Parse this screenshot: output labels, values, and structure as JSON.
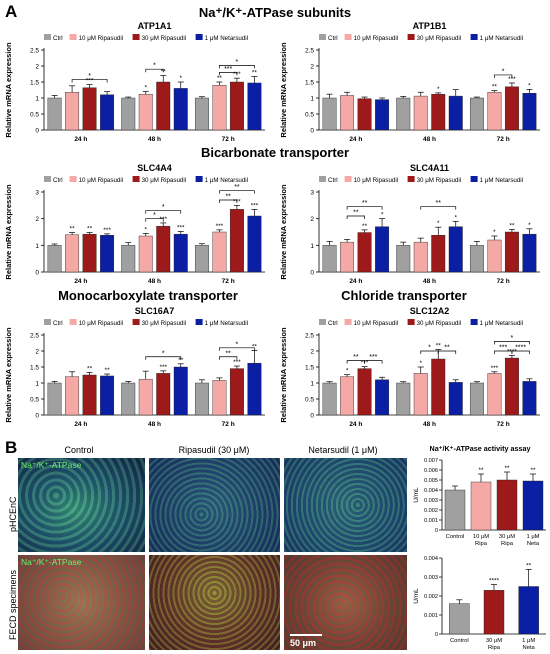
{
  "panel_a_letter": "A",
  "panel_b_letter": "B",
  "headers": {
    "na_k": "Na⁺/K⁺-ATPase subunits",
    "bicarbonate": "Bicarbonate transporter",
    "monocarboxylate": "Monocarboxylate transporter",
    "chloride": "Chloride transporter"
  },
  "colors": {
    "ctrl": "#a0a0a0",
    "ripa10": "#f4a9a6",
    "ripa30": "#9e1a1a",
    "neta": "#0b1fa5"
  },
  "micro": {
    "cols": [
      "Control",
      "Ripasudil (30 μM)",
      "Netarsudil (1 μM)"
    ],
    "rows": [
      "pHCEnC",
      "FECD specimens"
    ],
    "stain": "Na⁺/K⁺-ATPase",
    "scale": "50 μm"
  },
  "chart_data": [
    {
      "type": "bar",
      "title": "ATP1A1",
      "ylabel": "Relative mRNA expression",
      "ylim": [
        0,
        2.5
      ],
      "yticks": [
        0,
        0.5,
        1.0,
        1.5,
        2.0,
        2.5
      ],
      "categories": [
        "24 h",
        "48 h",
        "72 h"
      ],
      "legend": [
        "Ctrl",
        "10 μM Ripasudil",
        "30 μM Ripasudil",
        "1 μM Netarsudil"
      ],
      "series": [
        {
          "name": "Ctrl",
          "values": [
            1.0,
            1.0,
            1.0
          ],
          "errors": [
            0.08,
            0.03,
            0.04
          ]
        },
        {
          "name": "10 μM Ripasudil",
          "values": [
            1.18,
            1.12,
            1.4
          ],
          "errors": [
            0.2,
            0.08,
            0.1
          ]
        },
        {
          "name": "30 μM Ripasudil",
          "values": [
            1.32,
            1.5,
            1.5
          ],
          "errors": [
            0.1,
            0.2,
            0.12
          ]
        },
        {
          "name": "1 μM Netarsudil",
          "values": [
            1.1,
            1.3,
            1.47
          ],
          "errors": [
            0.1,
            0.2,
            0.2
          ]
        }
      ],
      "bar_marks": [
        [
          "",
          "",
          "***",
          ""
        ],
        [
          "",
          "*",
          "**",
          "*"
        ],
        [
          "",
          "**",
          "***",
          "**"
        ]
      ],
      "brackets": [
        {
          "g": 0,
          "a": 1,
          "b": 3,
          "y": 1.58,
          "text": "*"
        },
        {
          "g": 1,
          "a": 1,
          "b": 2,
          "y": 1.9,
          "text": "*"
        },
        {
          "g": 2,
          "a": 1,
          "b": 2,
          "y": 1.8,
          "text": "***"
        },
        {
          "g": 2,
          "a": 1,
          "b": 3,
          "y": 2.02,
          "text": "*"
        }
      ]
    },
    {
      "type": "bar",
      "title": "ATP1B1",
      "ylabel": "Relative mRNA expression",
      "ylim": [
        0,
        2.5
      ],
      "yticks": [
        0,
        0.5,
        1.0,
        1.5,
        2.0,
        2.5
      ],
      "categories": [
        "24 h",
        "48 h",
        "72 h"
      ],
      "legend": [
        "Ctrl",
        "10 μM Ripasudil",
        "30 μM Ripasudil",
        "1 μM Netarsudil"
      ],
      "series": [
        {
          "name": "Ctrl",
          "values": [
            1.0,
            1.0,
            1.0
          ],
          "errors": [
            0.12,
            0.05,
            0.03
          ]
        },
        {
          "name": "10 μM Ripasudil",
          "values": [
            1.08,
            1.06,
            1.18
          ],
          "errors": [
            0.1,
            0.12,
            0.05
          ]
        },
        {
          "name": "30 μM Ripasudil",
          "values": [
            0.98,
            1.12,
            1.35
          ],
          "errors": [
            0.05,
            0.04,
            0.12
          ]
        },
        {
          "name": "1 μM Netarsudil",
          "values": [
            0.95,
            1.06,
            1.15
          ],
          "errors": [
            0.05,
            0.2,
            0.12
          ]
        }
      ],
      "bar_marks": [
        [
          "",
          "",
          "",
          ""
        ],
        [
          "",
          "",
          "*",
          ""
        ],
        [
          "",
          "**",
          "***",
          "*"
        ]
      ],
      "brackets": [
        {
          "g": 2,
          "a": 1,
          "b": 2,
          "y": 1.72,
          "text": "*"
        }
      ]
    },
    {
      "type": "bar",
      "title": "SLC4A4",
      "ylabel": "Relative mRNA expression",
      "ylim": [
        0,
        3
      ],
      "yticks": [
        0,
        1,
        2,
        3
      ],
      "categories": [
        "24 h",
        "48 h",
        "72 h"
      ],
      "legend": [
        "Ctrl",
        "10 μM Ripasudil",
        "30 μM Ripasudil",
        "1 μM Netarsudil"
      ],
      "series": [
        {
          "name": "Ctrl",
          "values": [
            1.0,
            1.0,
            1.0
          ],
          "errors": [
            0.05,
            0.1,
            0.06
          ]
        },
        {
          "name": "10 μM Ripasudil",
          "values": [
            1.4,
            1.35,
            1.5
          ],
          "errors": [
            0.08,
            0.1,
            0.08
          ]
        },
        {
          "name": "30 μM Ripasudil",
          "values": [
            1.42,
            1.72,
            2.35
          ],
          "errors": [
            0.06,
            0.12,
            0.15
          ]
        },
        {
          "name": "1 μM Netarsudil",
          "values": [
            1.38,
            1.42,
            2.1
          ],
          "errors": [
            0.05,
            0.1,
            0.25
          ]
        }
      ],
      "bar_marks": [
        [
          "",
          "**",
          "**",
          "***"
        ],
        [
          "",
          "*",
          "***",
          "***"
        ],
        [
          "",
          "***",
          "***",
          "***"
        ]
      ],
      "brackets": [
        {
          "g": 1,
          "a": 1,
          "b": 2,
          "y": 2.0,
          "text": "*"
        },
        {
          "g": 1,
          "a": 1,
          "b": 3,
          "y": 2.3,
          "text": "*"
        },
        {
          "g": 2,
          "a": 1,
          "b": 2,
          "y": 2.7,
          "text": "**"
        },
        {
          "g": 2,
          "a": 1,
          "b": 3,
          "y": 3.05,
          "text": "**"
        }
      ]
    },
    {
      "type": "bar",
      "title": "SLC4A11",
      "ylabel": "Relative mRNA expression",
      "ylim": [
        0,
        3
      ],
      "yticks": [
        0,
        1,
        2,
        3
      ],
      "categories": [
        "24 h",
        "48 h",
        "72 h"
      ],
      "legend": [
        "Ctrl",
        "10 μM Ripasudil",
        "30 μM Ripasudil",
        "1 μM Netarsudil"
      ],
      "series": [
        {
          "name": "Ctrl",
          "values": [
            1.0,
            1.0,
            1.0
          ],
          "errors": [
            0.15,
            0.12,
            0.15
          ]
        },
        {
          "name": "10 μM Ripasudil",
          "values": [
            1.12,
            1.12,
            1.2
          ],
          "errors": [
            0.1,
            0.15,
            0.15
          ]
        },
        {
          "name": "30 μM Ripasudil",
          "values": [
            1.48,
            1.38,
            1.5
          ],
          "errors": [
            0.1,
            0.3,
            0.1
          ]
        },
        {
          "name": "1 μM Netarsudil",
          "values": [
            1.7,
            1.7,
            1.42
          ],
          "errors": [
            0.3,
            0.2,
            0.2
          ]
        }
      ],
      "bar_marks": [
        [
          "",
          "",
          "**",
          "*"
        ],
        [
          "",
          "",
          "*",
          "*"
        ],
        [
          "",
          "*",
          "**",
          "*"
        ]
      ],
      "brackets": [
        {
          "g": 0,
          "a": 1,
          "b": 2,
          "y": 2.1,
          "text": "**"
        },
        {
          "g": 0,
          "a": 1,
          "b": 3,
          "y": 2.45,
          "text": "**"
        },
        {
          "g": 1,
          "a": 1,
          "b": 3,
          "y": 2.45,
          "text": "**"
        }
      ]
    },
    {
      "type": "bar",
      "title": "SLC16A7",
      "ylabel": "Relative mRNA expression",
      "ylim": [
        0,
        2.5
      ],
      "yticks": [
        0,
        0.5,
        1.0,
        1.5,
        2.0,
        2.5
      ],
      "categories": [
        "24 h",
        "48 h",
        "72 h"
      ],
      "legend": [
        "Ctrl",
        "10 μM Ripasudil",
        "30 μM Ripasudil",
        "1 μM Netarsudil"
      ],
      "series": [
        {
          "name": "Ctrl",
          "values": [
            1.0,
            1.0,
            1.0
          ],
          "errors": [
            0.05,
            0.05,
            0.1
          ]
        },
        {
          "name": "10 μM Ripasudil",
          "values": [
            1.2,
            1.12,
            1.08
          ],
          "errors": [
            0.15,
            0.25,
            0.08
          ]
        },
        {
          "name": "30 μM Ripasudil",
          "values": [
            1.25,
            1.3,
            1.45
          ],
          "errors": [
            0.08,
            0.08,
            0.08
          ]
        },
        {
          "name": "1 μM Netarsudil",
          "values": [
            1.22,
            1.5,
            1.62
          ],
          "errors": [
            0.06,
            0.1,
            0.4
          ]
        }
      ],
      "bar_marks": [
        [
          "",
          "",
          "**",
          "**"
        ],
        [
          "",
          "",
          "***",
          "**"
        ],
        [
          "",
          "",
          "***",
          "**"
        ]
      ],
      "brackets": [
        {
          "g": 1,
          "a": 1,
          "b": 3,
          "y": 1.82,
          "text": "*"
        },
        {
          "g": 2,
          "a": 1,
          "b": 2,
          "y": 1.82,
          "text": "**"
        },
        {
          "g": 2,
          "a": 1,
          "b": 3,
          "y": 2.1,
          "text": "*"
        }
      ]
    },
    {
      "type": "bar",
      "title": "SLC12A2",
      "ylabel": "Relative mRNA expression",
      "ylim": [
        0,
        2.5
      ],
      "yticks": [
        0,
        0.5,
        1.0,
        1.5,
        2.0,
        2.5
      ],
      "categories": [
        "24 h",
        "48 h",
        "72 h"
      ],
      "legend": [
        "Ctrl",
        "10 μM Ripasudil",
        "30 μM Ripasudil",
        "1 μM Netarsudil"
      ],
      "series": [
        {
          "name": "Ctrl",
          "values": [
            1.0,
            1.0,
            1.0
          ],
          "errors": [
            0.04,
            0.04,
            0.04
          ]
        },
        {
          "name": "10 μM Ripasudil",
          "values": [
            1.2,
            1.3,
            1.3
          ],
          "errors": [
            0.06,
            0.2,
            0.05
          ]
        },
        {
          "name": "30 μM Ripasudil",
          "values": [
            1.45,
            1.75,
            1.78
          ],
          "errors": [
            0.06,
            0.3,
            0.08
          ]
        },
        {
          "name": "1 μM Netarsudil",
          "values": [
            1.1,
            1.02,
            1.05
          ],
          "errors": [
            0.08,
            0.08,
            0.08
          ]
        }
      ],
      "bar_marks": [
        [
          "",
          "*",
          "***",
          ""
        ],
        [
          "",
          "*",
          "**",
          ""
        ],
        [
          "",
          "***",
          "****",
          ""
        ]
      ],
      "brackets": [
        {
          "g": 0,
          "a": 1,
          "b": 2,
          "y": 1.7,
          "text": "**"
        },
        {
          "g": 0,
          "a": 2,
          "b": 3,
          "y": 1.7,
          "text": "***"
        },
        {
          "g": 1,
          "a": 1,
          "b": 2,
          "y": 2.0,
          "text": "*"
        },
        {
          "g": 1,
          "a": 2,
          "b": 3,
          "y": 2.0,
          "text": "**"
        },
        {
          "g": 2,
          "a": 1,
          "b": 2,
          "y": 2.0,
          "text": "***"
        },
        {
          "g": 2,
          "a": 2,
          "b": 3,
          "y": 2.0,
          "text": "****"
        },
        {
          "g": 2,
          "a": 1,
          "b": 3,
          "y": 2.3,
          "text": "*"
        }
      ]
    },
    {
      "type": "bar",
      "title": "Na⁺/K⁺-ATPase activity assay",
      "ylabel": "U/mL",
      "ylim": [
        0,
        0.007
      ],
      "yticks": [
        0,
        0.001,
        0.002,
        0.003,
        0.004,
        0.005,
        0.006,
        0.007
      ],
      "categories": [
        "Control",
        "10 μM Ripa",
        "30 μM Ripa",
        "1 μM Neta"
      ],
      "values": [
        0.004,
        0.0048,
        0.005,
        0.0049
      ],
      "errors": [
        0.0004,
        0.0008,
        0.0008,
        0.0007
      ],
      "marks": [
        "",
        "**",
        "**",
        "**"
      ]
    },
    {
      "type": "bar",
      "title": "",
      "ylabel": "U/mL",
      "ylim": [
        0,
        0.004
      ],
      "yticks": [
        0,
        0.001,
        0.002,
        0.003,
        0.004
      ],
      "categories": [
        "Control",
        "30 μM Ripa",
        "1 μM Neta"
      ],
      "values": [
        0.0016,
        0.0023,
        0.0025
      ],
      "errors": [
        0.0002,
        0.0003,
        0.0009
      ],
      "marks": [
        "",
        "****",
        "**"
      ]
    }
  ]
}
